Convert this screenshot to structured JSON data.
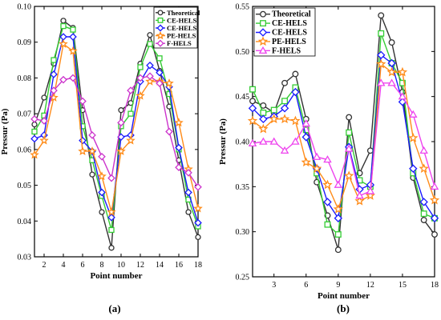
{
  "chart_data": [
    {
      "type": "line",
      "subfigure_label": "(a)",
      "xlabel": "Point number",
      "ylabel": "Pressur (Pa)",
      "xlim": [
        1,
        18
      ],
      "ylim": [
        0.03,
        0.1
      ],
      "xticks": [
        2,
        4,
        6,
        8,
        10,
        12,
        14,
        16,
        18
      ],
      "xtick_labels": [
        "2",
        "4",
        "6",
        "8",
        "10",
        "12",
        "14",
        "16",
        "18"
      ],
      "yticks": [
        0.03,
        0.04,
        0.05,
        0.06,
        0.07,
        0.08,
        0.09,
        0.1
      ],
      "ytick_labels": [
        "0.03",
        "0.04",
        "0.05",
        "0.06",
        "0.07",
        "0.08",
        "0.09",
        "0.10"
      ],
      "legend_position": "top-right",
      "x": [
        1,
        2,
        3,
        4,
        5,
        6,
        7,
        8,
        9,
        10,
        11,
        12,
        13,
        14,
        15,
        16,
        17,
        18
      ],
      "series": [
        {
          "name": "Theoretical",
          "color": "#333333",
          "marker": "circle",
          "values": [
            0.067,
            0.0745,
            0.084,
            0.096,
            0.094,
            0.071,
            0.053,
            0.0425,
            0.0325,
            0.071,
            0.073,
            0.084,
            0.092,
            0.082,
            0.072,
            0.057,
            0.0425,
            0.0355
          ]
        },
        {
          "name": "CE-HELS",
          "color": "#33cc33",
          "marker": "square",
          "values": [
            0.065,
            0.0695,
            0.085,
            0.0945,
            0.0935,
            0.0665,
            0.057,
            0.047,
            0.0375,
            0.0665,
            0.07,
            0.083,
            0.0895,
            0.0855,
            0.0755,
            0.06,
            0.046,
            0.0385
          ]
        },
        {
          "name": "CE-HELS",
          "color": "#1a1aff",
          "marker": "diamond",
          "values": [
            0.063,
            0.064,
            0.081,
            0.0915,
            0.0915,
            0.0625,
            0.0595,
            0.048,
            0.041,
            0.0635,
            0.064,
            0.079,
            0.0835,
            0.0815,
            0.0775,
            0.0605,
            0.048,
            0.0395
          ]
        },
        {
          "name": "PE-HELS",
          "color": "#ff8c1a",
          "marker": "star",
          "values": [
            0.0585,
            0.0625,
            0.0745,
            0.0895,
            0.0875,
            0.0595,
            0.0595,
            0.0525,
            0.0425,
            0.0595,
            0.0625,
            0.075,
            0.079,
            0.079,
            0.0785,
            0.0675,
            0.0545,
            0.0435
          ]
        },
        {
          "name": "F-HELS",
          "color": "#cc33cc",
          "marker": "diamond",
          "values": [
            0.0685,
            0.068,
            0.0765,
            0.0795,
            0.08,
            0.0735,
            0.064,
            0.058,
            0.052,
            0.0675,
            0.0765,
            0.08,
            0.0805,
            0.0785,
            0.065,
            0.055,
            0.0535,
            0.0495
          ]
        }
      ]
    },
    {
      "type": "line",
      "subfigure_label": "(b)",
      "xlabel": "Point number",
      "ylabel": "Pressur (Pa)",
      "xlim": [
        1,
        18
      ],
      "ylim": [
        0.25,
        0.55
      ],
      "xticks": [
        3,
        6,
        9,
        12,
        15,
        18
      ],
      "xtick_labels": [
        "3",
        "6",
        "9",
        "12",
        "15",
        "18"
      ],
      "yticks": [
        0.25,
        0.3,
        0.35,
        0.4,
        0.45,
        0.5,
        0.55
      ],
      "ytick_labels": [
        "0.25",
        "0.30",
        "0.35",
        "0.40",
        "0.45",
        "0.50",
        "0.55"
      ],
      "legend_position": "top-left",
      "x": [
        1,
        2,
        3,
        4,
        5,
        6,
        7,
        8,
        9,
        10,
        11,
        12,
        13,
        14,
        15,
        16,
        17,
        18
      ],
      "series": [
        {
          "name": "Theoretical",
          "color": "#333333",
          "marker": "circle",
          "values": [
            0.445,
            0.44,
            0.432,
            0.465,
            0.475,
            0.425,
            0.355,
            0.318,
            0.28,
            0.427,
            0.365,
            0.39,
            0.54,
            0.51,
            0.455,
            0.36,
            0.313,
            0.297
          ]
        },
        {
          "name": "CE-HELS",
          "color": "#33cc33",
          "marker": "square",
          "values": [
            0.458,
            0.432,
            0.435,
            0.445,
            0.46,
            0.413,
            0.365,
            0.308,
            0.297,
            0.41,
            0.357,
            0.35,
            0.52,
            0.487,
            0.465,
            0.365,
            0.32,
            0.315
          ]
        },
        {
          "name": "CE-HELS",
          "color": "#1a1aff",
          "marker": "diamond",
          "values": [
            0.437,
            0.425,
            0.428,
            0.437,
            0.455,
            0.405,
            0.37,
            0.333,
            0.315,
            0.394,
            0.347,
            0.352,
            0.496,
            0.487,
            0.444,
            0.37,
            0.333,
            0.315
          ]
        },
        {
          "name": "PE-HELS",
          "color": "#ff8c1a",
          "marker": "star",
          "values": [
            0.423,
            0.414,
            0.425,
            0.425,
            0.423,
            0.377,
            0.37,
            0.352,
            0.325,
            0.362,
            0.334,
            0.34,
            0.486,
            0.477,
            0.477,
            0.404,
            0.37,
            0.335
          ]
        },
        {
          "name": "F-HELS",
          "color": "#ee44ee",
          "marker": "triangle",
          "values": [
            0.398,
            0.4,
            0.4,
            0.39,
            0.4,
            0.42,
            0.383,
            0.38,
            0.352,
            0.392,
            0.34,
            0.345,
            0.465,
            0.465,
            0.45,
            0.43,
            0.39,
            0.35
          ]
        }
      ]
    }
  ]
}
